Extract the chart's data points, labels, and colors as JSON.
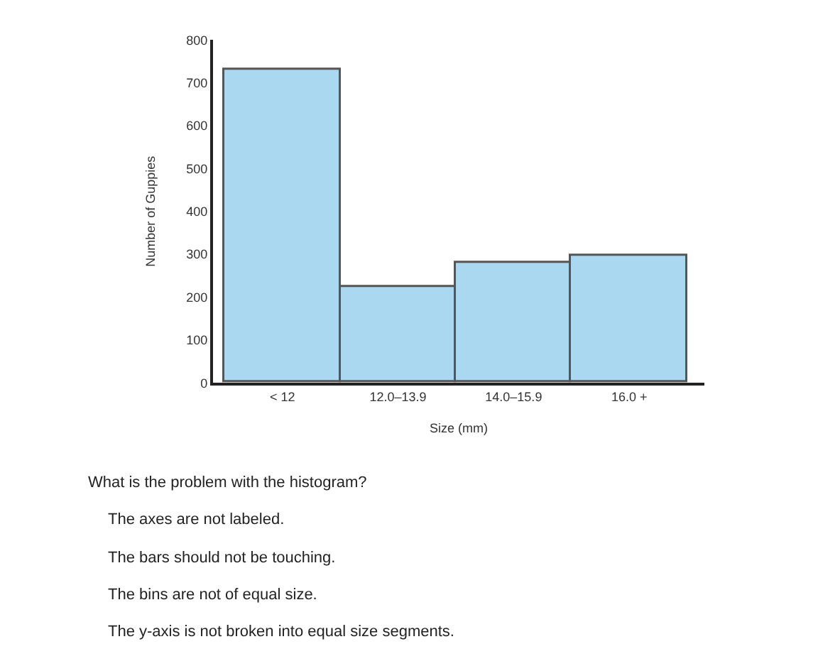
{
  "chart_data": {
    "type": "bar",
    "xlabel": "Size (mm)",
    "ylabel": "Number of Guppies",
    "categories": [
      "< 12",
      "12.0–13.9",
      "14.0–15.9",
      "16.0 +"
    ],
    "values": [
      730,
      225,
      280,
      295
    ],
    "color": "#a9d8f0",
    "ylim": [
      0,
      800
    ],
    "yticks": [
      0,
      100,
      200,
      300,
      400,
      500,
      600,
      700,
      800
    ],
    "annotations": [
      "What is the problem with the histogram?",
      "The axes are not labeled.",
      "The bars should not be touching.",
      "The bins are not of equal size.",
      "The y-axis is not broken into equal size segments."
    ]
  }
}
